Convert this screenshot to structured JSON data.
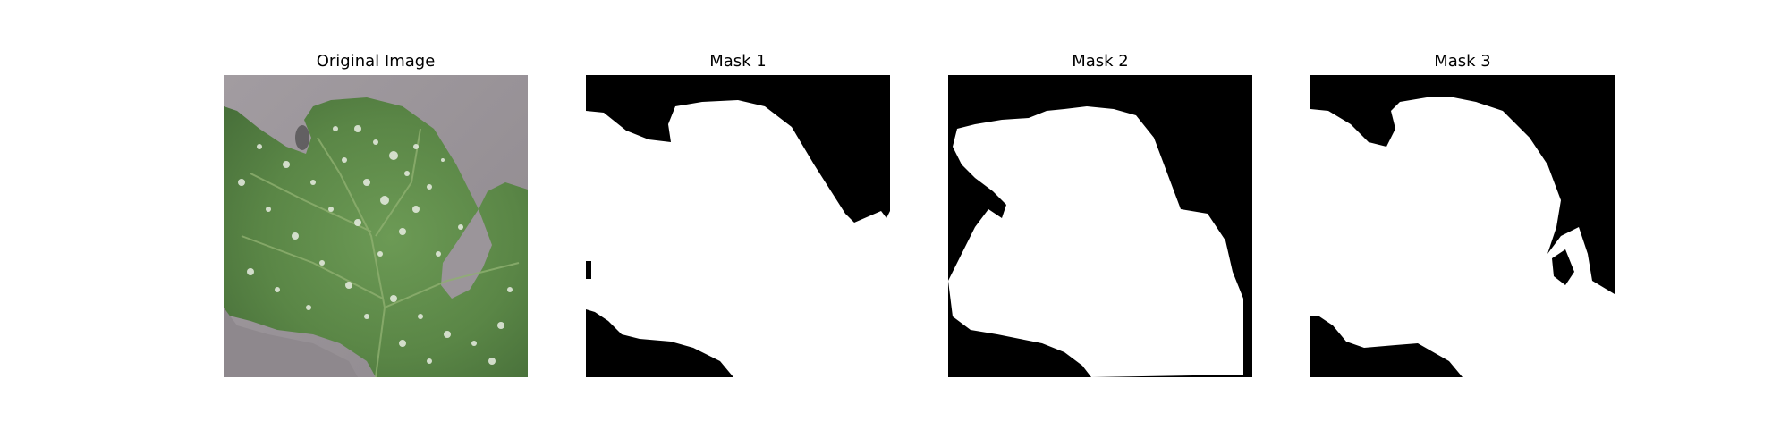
{
  "panels": [
    {
      "title": "Original Image"
    },
    {
      "title": "Mask 1"
    },
    {
      "title": "Mask 2"
    },
    {
      "title": "Mask 3"
    }
  ],
  "colors": {
    "background_surface": "#9a9499",
    "leaf_green": "#5f8a4a",
    "leaf_dark": "#4a723c",
    "mildew_white": "#e6eadf",
    "mask_foreground": "#ffffff",
    "mask_background": "#000000"
  }
}
